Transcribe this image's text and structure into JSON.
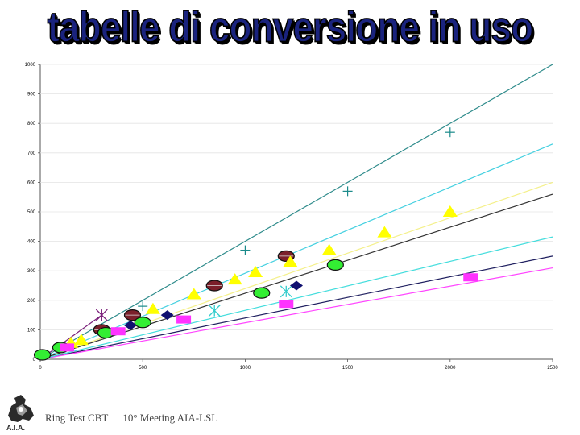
{
  "page": {
    "title": "tabelle di conversione in uso",
    "footer": {
      "left": "Ring Test CBT",
      "right": "10° Meeting AIA-LSL"
    },
    "logo_text": "A.I.A."
  },
  "chart_data": {
    "type": "scatter",
    "title": "tabelle di conversione in uso",
    "xlabel": "",
    "ylabel": "",
    "xlim": [
      0,
      2500
    ],
    "ylim": [
      0,
      1000
    ],
    "x_ticks": [
      0,
      500,
      1000,
      1500,
      2000,
      2500
    ],
    "y_ticks": [
      0,
      100,
      200,
      300,
      400,
      500,
      600,
      700,
      800,
      900,
      1000
    ],
    "grid": "horizontal",
    "legend": "none",
    "series": [
      {
        "marker": "plus",
        "color": "#1a8a8a",
        "line_color": "#2e8b8b",
        "line": [
          [
            0,
            0
          ],
          [
            2500,
            1000
          ]
        ],
        "points": [
          [
            500,
            180
          ],
          [
            1000,
            370
          ],
          [
            1500,
            570
          ],
          [
            2000,
            770
          ]
        ]
      },
      {
        "marker": "circle",
        "color": "#7b1f2a",
        "line_color": "#7b1f2a",
        "line": null,
        "points": [
          [
            300,
            100
          ],
          [
            450,
            150
          ],
          [
            850,
            250
          ],
          [
            1200,
            350
          ]
        ]
      },
      {
        "marker": "x",
        "color": "#7a1f7a",
        "line_color": "#7a1f7a",
        "line": [
          [
            0,
            0
          ],
          [
            300,
            150
          ]
        ],
        "points": [
          [
            300,
            150
          ]
        ]
      },
      {
        "marker": "triangle",
        "color": "#ffff00",
        "line_color": "#f4f08a",
        "line": [
          [
            0,
            0
          ],
          [
            2500,
            600
          ]
        ],
        "points": [
          [
            150,
            55
          ],
          [
            200,
            65
          ],
          [
            550,
            170
          ],
          [
            750,
            220
          ],
          [
            950,
            270
          ],
          [
            1050,
            295
          ],
          [
            1220,
            330
          ],
          [
            1410,
            370
          ],
          [
            1680,
            430
          ],
          [
            2000,
            500
          ]
        ]
      },
      {
        "marker": "x",
        "color": "#33cccc",
        "line_color": "#44d0e0",
        "line": [
          [
            0,
            0
          ],
          [
            2500,
            730
          ]
        ],
        "points": [
          [
            850,
            165
          ],
          [
            1200,
            230
          ]
        ]
      },
      {
        "marker": "circle",
        "color": "#33ee33",
        "line_color": "#333333",
        "line": [
          [
            0,
            0
          ],
          [
            2500,
            560
          ]
        ],
        "points": [
          [
            10,
            15
          ],
          [
            100,
            40
          ],
          [
            320,
            90
          ],
          [
            500,
            125
          ],
          [
            1080,
            225
          ],
          [
            1440,
            320
          ]
        ]
      },
      {
        "marker": "diamond",
        "color": "#101070",
        "line_color": "#202060",
        "line": [
          [
            0,
            0
          ],
          [
            2500,
            350
          ]
        ],
        "points": [
          [
            440,
            115
          ],
          [
            620,
            150
          ],
          [
            1250,
            250
          ]
        ]
      },
      {
        "marker": "square",
        "color": "#ff33ff",
        "line_color": "#ff44ff",
        "line": [
          [
            0,
            0
          ],
          [
            2500,
            310
          ]
        ],
        "points": [
          [
            130,
            40
          ],
          [
            380,
            95
          ],
          [
            700,
            135
          ],
          [
            1200,
            188
          ],
          [
            2100,
            278
          ]
        ]
      },
      {
        "marker": "none",
        "color": "#44dddd",
        "line_color": "#44dddd",
        "line": [
          [
            0,
            0
          ],
          [
            2500,
            415
          ]
        ],
        "points": []
      }
    ]
  }
}
